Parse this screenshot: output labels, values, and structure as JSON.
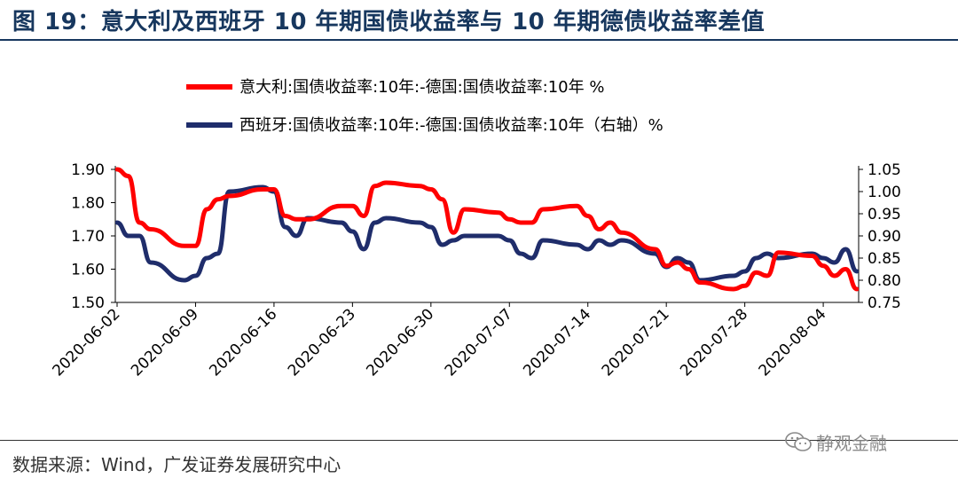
{
  "title": "图 19：意大利及西班牙 10 年期国债收益率与 10 年期德债收益率差值",
  "source": "数据来源：Wind，广发证券发展研究中心",
  "watermark": "静观金融",
  "chart_data": {
    "type": "line",
    "x_tick_labels": [
      "2020-06-02",
      "2020-06-09",
      "2020-06-16",
      "2020-06-23",
      "2020-06-30",
      "2020-07-07",
      "2020-07-14",
      "2020-07-21",
      "2020-07-28",
      "2020-08-04"
    ],
    "left_axis": {
      "ylim": [
        1.5,
        1.9
      ],
      "ticks": [
        "1.50",
        "1.60",
        "1.70",
        "1.80",
        "1.90"
      ]
    },
    "right_axis": {
      "ylim": [
        0.75,
        1.05
      ],
      "ticks": [
        "0.75",
        "0.80",
        "0.85",
        "0.90",
        "0.95",
        "1.00",
        "1.05"
      ]
    },
    "series": [
      {
        "name": "意大利:国债收益率:10年:-德国:国债收益率:10年 %",
        "color": "#ff0000",
        "axis": "left",
        "points": [
          [
            "2020-06-02",
            1.9
          ],
          [
            "2020-06-03",
            1.88
          ],
          [
            "2020-06-04",
            1.74
          ],
          [
            "2020-06-05",
            1.72
          ],
          [
            "2020-06-08",
            1.67
          ],
          [
            "2020-06-09",
            1.67
          ],
          [
            "2020-06-10",
            1.78
          ],
          [
            "2020-06-11",
            1.81
          ],
          [
            "2020-06-12",
            1.82
          ],
          [
            "2020-06-15",
            1.84
          ],
          [
            "2020-06-16",
            1.84
          ],
          [
            "2020-06-17",
            1.76
          ],
          [
            "2020-06-18",
            1.75
          ],
          [
            "2020-06-19",
            1.75
          ],
          [
            "2020-06-22",
            1.79
          ],
          [
            "2020-06-23",
            1.79
          ],
          [
            "2020-06-24",
            1.76
          ],
          [
            "2020-06-25",
            1.85
          ],
          [
            "2020-06-26",
            1.86
          ],
          [
            "2020-06-29",
            1.85
          ],
          [
            "2020-06-30",
            1.84
          ],
          [
            "2020-07-01",
            1.81
          ],
          [
            "2020-07-02",
            1.71
          ],
          [
            "2020-07-03",
            1.78
          ],
          [
            "2020-07-06",
            1.77
          ],
          [
            "2020-07-07",
            1.75
          ],
          [
            "2020-07-08",
            1.74
          ],
          [
            "2020-07-09",
            1.74
          ],
          [
            "2020-07-10",
            1.78
          ],
          [
            "2020-07-13",
            1.79
          ],
          [
            "2020-07-14",
            1.76
          ],
          [
            "2020-07-15",
            1.72
          ],
          [
            "2020-07-16",
            1.74
          ],
          [
            "2020-07-17",
            1.71
          ],
          [
            "2020-07-20",
            1.66
          ],
          [
            "2020-07-21",
            1.61
          ],
          [
            "2020-07-22",
            1.62
          ],
          [
            "2020-07-23",
            1.6
          ],
          [
            "2020-07-24",
            1.56
          ],
          [
            "2020-07-27",
            1.54
          ],
          [
            "2020-07-28",
            1.55
          ],
          [
            "2020-07-29",
            1.59
          ],
          [
            "2020-07-30",
            1.58
          ],
          [
            "2020-07-31",
            1.65
          ],
          [
            "2020-08-03",
            1.64
          ],
          [
            "2020-08-04",
            1.61
          ],
          [
            "2020-08-05",
            1.58
          ],
          [
            "2020-08-06",
            1.6
          ],
          [
            "2020-08-07",
            1.54
          ]
        ]
      },
      {
        "name": "西班牙:国债收益率:10年:-德国:国债收益率:10年（右轴）%",
        "color": "#1f2d6b",
        "axis": "right",
        "points": [
          [
            "2020-06-02",
            0.93
          ],
          [
            "2020-06-03",
            0.9
          ],
          [
            "2020-06-04",
            0.9
          ],
          [
            "2020-06-05",
            0.84
          ],
          [
            "2020-06-08",
            0.8
          ],
          [
            "2020-06-09",
            0.81
          ],
          [
            "2020-06-10",
            0.85
          ],
          [
            "2020-06-11",
            0.86
          ],
          [
            "2020-06-12",
            1.0
          ],
          [
            "2020-06-15",
            1.01
          ],
          [
            "2020-06-16",
            1.0
          ],
          [
            "2020-06-17",
            0.92
          ],
          [
            "2020-06-18",
            0.9
          ],
          [
            "2020-06-19",
            0.94
          ],
          [
            "2020-06-22",
            0.93
          ],
          [
            "2020-06-23",
            0.91
          ],
          [
            "2020-06-24",
            0.87
          ],
          [
            "2020-06-25",
            0.93
          ],
          [
            "2020-06-26",
            0.94
          ],
          [
            "2020-06-29",
            0.93
          ],
          [
            "2020-06-30",
            0.92
          ],
          [
            "2020-07-01",
            0.88
          ],
          [
            "2020-07-02",
            0.89
          ],
          [
            "2020-07-03",
            0.9
          ],
          [
            "2020-07-06",
            0.9
          ],
          [
            "2020-07-07",
            0.89
          ],
          [
            "2020-07-08",
            0.86
          ],
          [
            "2020-07-09",
            0.85
          ],
          [
            "2020-07-10",
            0.89
          ],
          [
            "2020-07-13",
            0.88
          ],
          [
            "2020-07-14",
            0.87
          ],
          [
            "2020-07-15",
            0.89
          ],
          [
            "2020-07-16",
            0.88
          ],
          [
            "2020-07-17",
            0.89
          ],
          [
            "2020-07-20",
            0.86
          ],
          [
            "2020-07-21",
            0.83
          ],
          [
            "2020-07-22",
            0.85
          ],
          [
            "2020-07-23",
            0.84
          ],
          [
            "2020-07-24",
            0.8
          ],
          [
            "2020-07-27",
            0.81
          ],
          [
            "2020-07-28",
            0.82
          ],
          [
            "2020-07-29",
            0.85
          ],
          [
            "2020-07-30",
            0.86
          ],
          [
            "2020-07-31",
            0.85
          ],
          [
            "2020-08-03",
            0.86
          ],
          [
            "2020-08-04",
            0.85
          ],
          [
            "2020-08-05",
            0.84
          ],
          [
            "2020-08-06",
            0.87
          ],
          [
            "2020-08-07",
            0.82
          ]
        ]
      }
    ]
  }
}
